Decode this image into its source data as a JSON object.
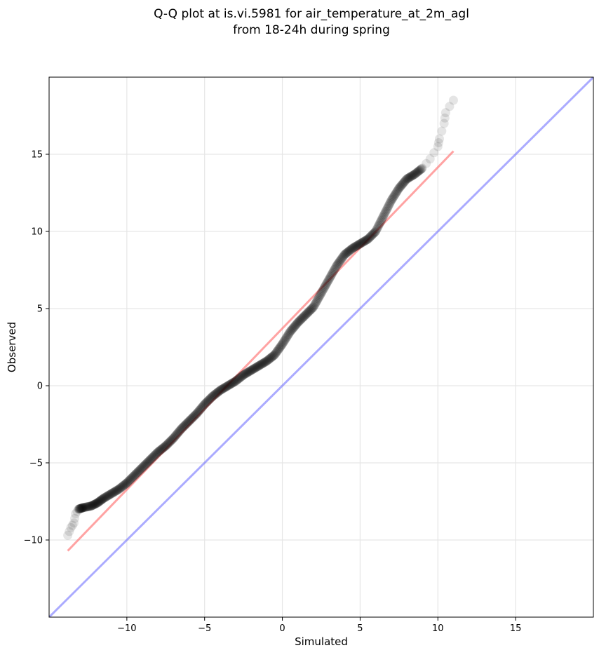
{
  "chart_data": {
    "type": "scatter",
    "title_line1": "Q-Q plot at is.vi.5981 for air_temperature_at_2m_agl",
    "title_line2": "from 18-24h during spring",
    "xlabel": "Simulated",
    "ylabel": "Observed",
    "xlim": [
      -15,
      20
    ],
    "ylim": [
      -15,
      20
    ],
    "xticks": [
      -10,
      -5,
      0,
      5,
      10,
      15
    ],
    "yticks": [
      -10,
      -5,
      0,
      5,
      10,
      15
    ],
    "xtick_labels": [
      "−10",
      "−5",
      "0",
      "5",
      "10",
      "15"
    ],
    "ytick_labels": [
      "−10",
      "−5",
      "0",
      "5",
      "10",
      "15"
    ],
    "grid": true,
    "colors": {
      "points": "#000000",
      "fit_line": "#ff6666",
      "identity_line": "#6666ff"
    },
    "quantile_curve": [
      [
        -13.8,
        -9.7
      ],
      [
        -13.6,
        -9.2
      ],
      [
        -13.4,
        -8.9
      ],
      [
        -13.3,
        -8.3
      ],
      [
        -13.1,
        -8.0
      ],
      [
        -12.8,
        -7.9
      ],
      [
        -12.3,
        -7.8
      ],
      [
        -11.9,
        -7.6
      ],
      [
        -11.5,
        -7.3
      ],
      [
        -11.0,
        -7.0
      ],
      [
        -10.5,
        -6.7
      ],
      [
        -10.0,
        -6.3
      ],
      [
        -9.5,
        -5.8
      ],
      [
        -9.0,
        -5.3
      ],
      [
        -8.5,
        -4.8
      ],
      [
        -8.0,
        -4.3
      ],
      [
        -7.5,
        -3.9
      ],
      [
        -7.0,
        -3.4
      ],
      [
        -6.5,
        -2.8
      ],
      [
        -6.0,
        -2.3
      ],
      [
        -5.5,
        -1.8
      ],
      [
        -5.0,
        -1.2
      ],
      [
        -4.5,
        -0.7
      ],
      [
        -4.0,
        -0.3
      ],
      [
        -3.5,
        0.0
      ],
      [
        -3.0,
        0.3
      ],
      [
        -2.5,
        0.7
      ],
      [
        -2.0,
        1.0
      ],
      [
        -1.5,
        1.3
      ],
      [
        -1.0,
        1.6
      ],
      [
        -0.5,
        2.0
      ],
      [
        0.0,
        2.7
      ],
      [
        0.5,
        3.5
      ],
      [
        1.0,
        4.1
      ],
      [
        1.5,
        4.6
      ],
      [
        2.0,
        5.1
      ],
      [
        2.5,
        6.0
      ],
      [
        3.0,
        6.9
      ],
      [
        3.5,
        7.8
      ],
      [
        4.0,
        8.5
      ],
      [
        4.5,
        8.9
      ],
      [
        5.0,
        9.2
      ],
      [
        5.5,
        9.5
      ],
      [
        6.0,
        10.0
      ],
      [
        6.5,
        11.0
      ],
      [
        7.0,
        12.0
      ],
      [
        7.5,
        12.8
      ],
      [
        8.0,
        13.4
      ],
      [
        8.5,
        13.7
      ],
      [
        9.0,
        14.1
      ],
      [
        9.5,
        14.7
      ],
      [
        10.0,
        15.5
      ],
      [
        10.1,
        16.0
      ],
      [
        10.4,
        17.0
      ],
      [
        10.5,
        17.7
      ],
      [
        11.0,
        18.5
      ]
    ],
    "fit_line": [
      [
        -13.8,
        -10.7
      ],
      [
        11.0,
        15.2
      ]
    ],
    "identity_line": [
      [
        -15,
        -15
      ],
      [
        20,
        20
      ]
    ]
  }
}
